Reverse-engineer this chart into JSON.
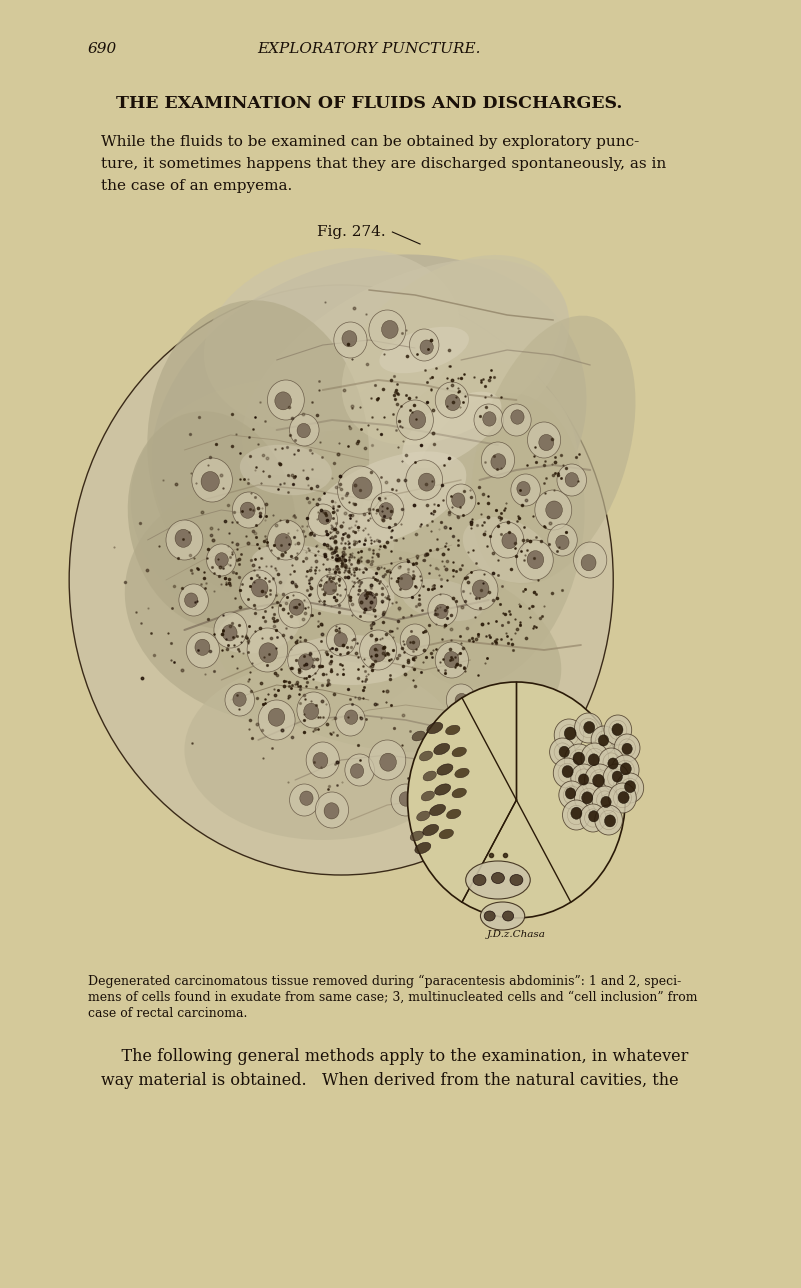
{
  "background_color": "#d4c99a",
  "text_color": "#1a1008",
  "page_number": "690",
  "header_text": "EXPLORATORY PUNCTURE.",
  "title": "THE EXAMINATION OF FLUIDS AND DISCHARGES.",
  "paragraph1_line1": "While the fluids to be examined can be obtained by exploratory punc-",
  "paragraph1_line2": "ture, it sometimes happens that they are discharged spontaneously, as in",
  "paragraph1_line3": "the case of an empyema.",
  "fig_label": "Fig. 274.",
  "caption_line1": "Degenerated carcinomatous tissue removed during “paracentesis abdominis”: 1 and 2, speci-",
  "caption_line2": "mens of cells found in exudate from same case; 3, multinucleated cells and “cell inclusion” from",
  "caption_line3": "case of rectal carcinoma.",
  "paragraph2_line1": "    The following general methods apply to the examination, in whatever",
  "paragraph2_line2": "way material is obtained.   When derived from the natural cavities, the",
  "signature": "J.D.z.Chasa",
  "dpi": 100,
  "figsize": [
    8.01,
    12.88
  ]
}
